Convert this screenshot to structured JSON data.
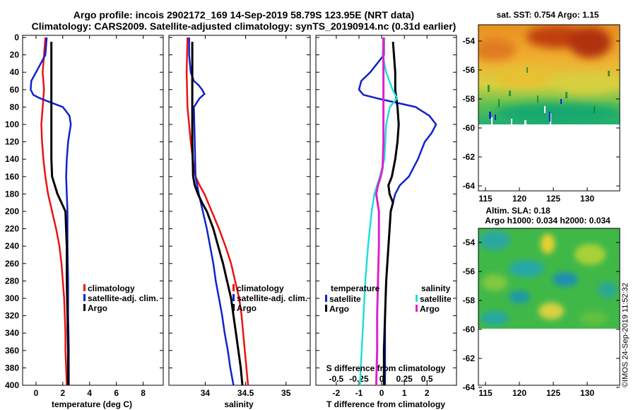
{
  "header": {
    "title_line1": "Argo profile: incois 2902172_169 14-Sep-2019 58.79S 123.95E (NRT data)",
    "title_line2": "Climatology: CARS2009. Satellite-adjusted climatology: synTS_20190914.nc (0.31d earlier)"
  },
  "colors": {
    "climatology": "#ee1111",
    "satellite": "#1122cc",
    "argo": "#000000",
    "sat_salinity": "#22dddd",
    "argo_salinity": "#dd22cc"
  },
  "chart_data": [
    {
      "type": "line",
      "id": "temperature",
      "title": "",
      "xlabel": "temperature (deg C)",
      "ylabel": "",
      "xlim": [
        -1,
        9.5
      ],
      "ylim": [
        400,
        0
      ],
      "xticks": [
        "0",
        "2",
        "4",
        "6",
        "8"
      ],
      "xtick_values": [
        0,
        2,
        4,
        6,
        8
      ],
      "yticks": [
        "0",
        "20",
        "40",
        "60",
        "80",
        "100",
        "120",
        "140",
        "160",
        "180",
        "200",
        "220",
        "240",
        "260",
        "280",
        "300",
        "320",
        "340",
        "360",
        "380",
        "400"
      ],
      "legend": [
        "climatology",
        "satellite-adj. clim.",
        "Argo"
      ],
      "series": [
        {
          "name": "climatology",
          "depth": [
            0,
            20,
            40,
            60,
            80,
            100,
            120,
            140,
            160,
            180,
            200,
            220,
            240,
            260,
            280,
            300,
            320,
            340,
            360,
            380,
            400
          ],
          "values": [
            0.7,
            0.6,
            0.5,
            0.6,
            0.5,
            0.4,
            0.45,
            0.55,
            0.7,
            0.9,
            1.2,
            1.5,
            1.75,
            1.9,
            2.0,
            2.1,
            2.15,
            2.2,
            2.2,
            2.25,
            2.3
          ]
        },
        {
          "name": "satellite-adj. clim.",
          "depth": [
            0,
            20,
            40,
            50,
            60,
            66,
            70,
            80,
            90,
            100,
            120,
            140,
            160,
            180,
            200,
            240,
            280,
            320,
            360,
            400
          ],
          "values": [
            0.8,
            0.7,
            0.0,
            -0.35,
            -0.4,
            -0.2,
            0.3,
            2.0,
            2.5,
            2.6,
            2.4,
            2.3,
            2.25,
            2.3,
            2.35,
            2.35,
            2.4,
            2.4,
            2.45,
            2.45
          ]
        },
        {
          "name": "Argo",
          "depth": [
            5,
            20,
            40,
            60,
            80,
            100,
            120,
            140,
            160,
            170,
            180,
            190,
            200,
            240,
            280,
            320,
            360,
            400
          ],
          "values": [
            1.15,
            1.15,
            1.15,
            1.15,
            1.15,
            1.15,
            1.15,
            1.15,
            1.2,
            1.4,
            1.6,
            1.9,
            2.2,
            2.3,
            2.3,
            2.35,
            2.4,
            2.4
          ]
        }
      ]
    },
    {
      "type": "line",
      "id": "salinity",
      "title": "",
      "xlabel": "salinity",
      "ylabel": "",
      "xlim": [
        33.55,
        35.3
      ],
      "ylim": [
        400,
        0
      ],
      "xticks": [
        "34",
        "34.5",
        "35"
      ],
      "xtick_values": [
        34,
        34.5,
        35
      ],
      "legend": [
        "climatology",
        "satellite-adj. clim.",
        "Argo"
      ],
      "series": [
        {
          "name": "climatology",
          "depth": [
            0,
            40,
            80,
            120,
            150,
            160,
            170,
            180,
            200,
            220,
            240,
            260,
            280,
            300,
            320,
            340,
            360,
            380,
            400
          ],
          "values": [
            33.78,
            33.77,
            33.78,
            33.82,
            33.86,
            33.88,
            33.93,
            33.99,
            34.08,
            34.17,
            34.25,
            34.32,
            34.37,
            34.42,
            34.45,
            34.47,
            34.49,
            34.51,
            34.53
          ]
        },
        {
          "name": "satellite-adj. clim.",
          "depth": [
            0,
            20,
            40,
            50,
            55,
            60,
            65,
            70,
            80,
            120,
            160,
            180,
            200,
            220,
            240,
            260,
            280,
            300,
            320,
            340,
            360,
            380,
            400
          ],
          "values": [
            33.8,
            33.8,
            33.82,
            33.86,
            33.92,
            33.96,
            33.99,
            33.93,
            33.86,
            33.87,
            33.88,
            33.92,
            33.97,
            34.02,
            34.06,
            34.1,
            34.13,
            34.17,
            34.21,
            34.24,
            34.28,
            34.31,
            34.35
          ]
        },
        {
          "name": "Argo",
          "depth": [
            5,
            40,
            80,
            120,
            160,
            170,
            180,
            190,
            200,
            220,
            240,
            260,
            280,
            300,
            320,
            340,
            360,
            380,
            400
          ],
          "values": [
            33.84,
            33.84,
            33.84,
            33.84,
            33.85,
            33.87,
            33.91,
            33.96,
            34.02,
            34.1,
            34.16,
            34.22,
            34.27,
            34.32,
            34.35,
            34.38,
            34.41,
            34.44,
            34.46
          ]
        }
      ]
    },
    {
      "type": "line",
      "id": "difference",
      "title": "",
      "xlabel": "T difference from climatology",
      "xlabel_top": "S difference from climatology",
      "ylabel": "",
      "xlim": [
        -2.9,
        3.3
      ],
      "ylim": [
        400,
        0
      ],
      "xticks": [
        "-2",
        "-1",
        "0",
        "1",
        "2"
      ],
      "xtick_values": [
        -2,
        -1,
        0,
        1,
        2
      ],
      "xticks_s": [
        "-0.5",
        "-0.25",
        "0",
        "0.25",
        "0.5"
      ],
      "xtick_values_s": [
        -0.5,
        -0.25,
        0,
        0.25,
        0.5
      ],
      "legend_temperature": {
        "title": "temperature",
        "items": [
          "satellite",
          "Argo"
        ]
      },
      "legend_salinity": {
        "title": "salinity",
        "items": [
          "satellite",
          "Argo"
        ]
      },
      "series": [
        {
          "name": "temperature satellite",
          "depth": [
            0,
            20,
            40,
            50,
            60,
            66,
            70,
            80,
            90,
            100,
            110,
            120,
            140,
            160,
            170,
            180,
            200,
            240,
            280,
            320,
            360,
            400
          ],
          "values": [
            0.1,
            0.1,
            -0.5,
            -0.9,
            -1.0,
            -0.8,
            -0.2,
            1.5,
            2.1,
            2.4,
            2.2,
            1.9,
            1.6,
            1.2,
            0.8,
            0.6,
            0.4,
            0.3,
            0.2,
            0.15,
            0.15,
            0.15
          ]
        },
        {
          "name": "temperature Argo",
          "depth": [
            5,
            40,
            60,
            80,
            100,
            120,
            140,
            160,
            170,
            180,
            190,
            200,
            240,
            280,
            320,
            360,
            400
          ],
          "values": [
            0.5,
            0.6,
            0.6,
            0.7,
            0.75,
            0.7,
            0.6,
            0.45,
            0.3,
            0.35,
            0.5,
            0.4,
            0.3,
            0.2,
            0.15,
            0.1,
            0.1
          ]
        },
        {
          "name": "salinity satellite",
          "depth": [
            0,
            20,
            40,
            60,
            70,
            80,
            100,
            140,
            160,
            180,
            200,
            240,
            280,
            320,
            360,
            400
          ],
          "values": [
            0.02,
            0.01,
            0.05,
            0.12,
            0.17,
            0.09,
            0.05,
            0.03,
            -0.02,
            -0.08,
            -0.11,
            -0.15,
            -0.18,
            -0.2,
            -0.22,
            -0.24
          ]
        },
        {
          "name": "salinity Argo",
          "depth": [
            0,
            40,
            80,
            120,
            150,
            160,
            170,
            180,
            200,
            240,
            280,
            320,
            360,
            400
          ],
          "values": [
            0.02,
            0.02,
            0.02,
            0.02,
            0.01,
            -0.01,
            -0.04,
            -0.06,
            -0.03,
            -0.03,
            -0.04,
            -0.05,
            -0.05,
            -0.06
          ]
        }
      ]
    }
  ],
  "sst_map": {
    "title": "sat. SST: 0.754 Argo: 1.15",
    "yticks": [
      "-54",
      "-56",
      "-58",
      "-60",
      "-62",
      "-64"
    ],
    "xticks": [
      "115",
      "120",
      "125",
      "130"
    ]
  },
  "sla_map": {
    "title_line1": "Altim. SLA: 0.18",
    "title_line2": "Argo h1000: 0.034 h2000: 0.034",
    "yticks": [
      "-54",
      "-56",
      "-58",
      "-60",
      "-62",
      "-64"
    ],
    "xticks": [
      "115",
      "120",
      "125",
      "130"
    ]
  },
  "watermark": "©IMOS 24-Sep-2019 11:52:32"
}
